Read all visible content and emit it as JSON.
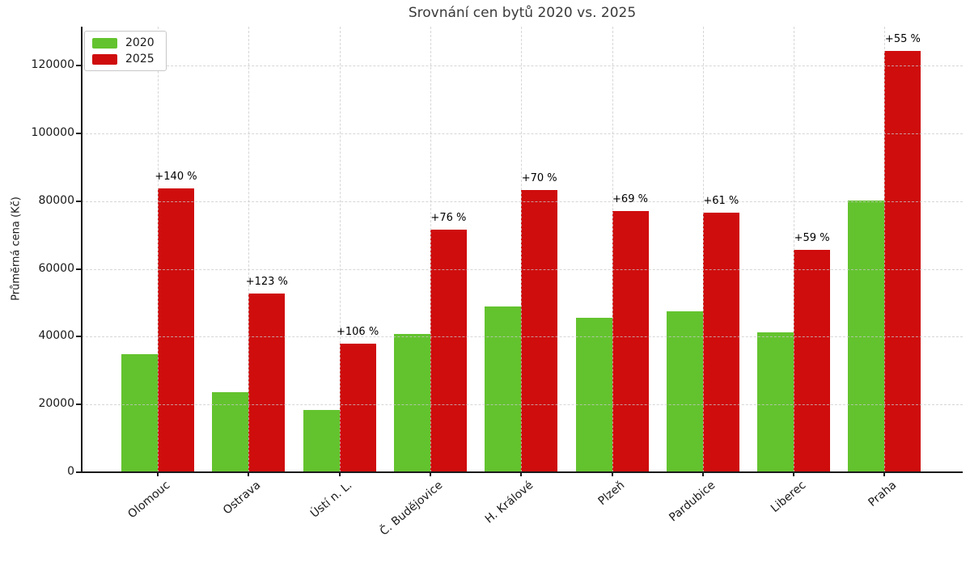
{
  "chart_data": {
    "type": "bar",
    "title": "Srovnání cen bytů 2020 vs. 2025",
    "ylabel": "Průměrná cena (Kč)",
    "categories": [
      "Olomouc",
      "Ostrava",
      "Ústí n. L.",
      "Č. Budějovice",
      "H. Králové",
      "Plzeň",
      "Pardubice",
      "Liberec",
      "Praha"
    ],
    "series": [
      {
        "name": "2020",
        "color": "#63c32e",
        "values": [
          34900,
          23700,
          18400,
          40700,
          48900,
          45700,
          47500,
          41300,
          80200
        ]
      },
      {
        "name": "2025",
        "color": "#cf0d0d",
        "values": [
          83800,
          52800,
          37900,
          71600,
          83200,
          77200,
          76500,
          65700,
          124300
        ]
      }
    ],
    "annotations": [
      "+140 %",
      "+123 %",
      "+106 %",
      "+76 %",
      "+70 %",
      "+69 %",
      "+61 %",
      "+59 %",
      "+55 %"
    ],
    "yticks": [
      0,
      20000,
      40000,
      60000,
      80000,
      100000,
      120000
    ],
    "ylim": [
      0,
      131500
    ],
    "grid": true,
    "legend_position": "upper left"
  },
  "colors": {
    "series_2020": "#63c32e",
    "series_2025": "#cf0d0d",
    "grid": "#c9c9c9",
    "axis": "#1a1a1a",
    "title": "#3a3a3a"
  }
}
